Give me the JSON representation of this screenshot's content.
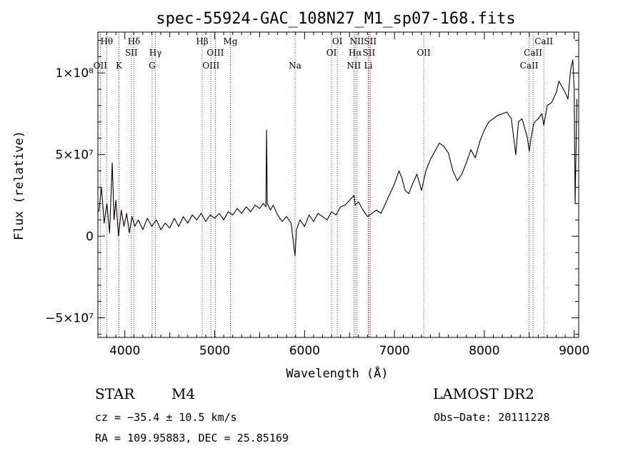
{
  "chart_data": {
    "type": "line",
    "title": "spec-55924-GAC_108N27_M1_sp07-168.fits",
    "xlabel": "Wavelength (Å)",
    "ylabel": "Flux (relative)",
    "xlim": [
      3700,
      9050
    ],
    "ylim": [
      -62000000,
      125000000
    ],
    "x_ticks": [
      4000,
      5000,
      6000,
      7000,
      8000,
      9000
    ],
    "x_tick_labels": [
      "4000",
      "5000",
      "6000",
      "7000",
      "8000",
      "9000"
    ],
    "y_ticks": [
      -50000000,
      0,
      50000000,
      100000000
    ],
    "y_tick_labels": [
      "−5×10⁷",
      "0",
      "5×10⁷",
      "1×10⁸"
    ],
    "grid": false,
    "line_color": "#000000",
    "marker_color": "#b22222",
    "series": [
      {
        "values": [
          [
            3710,
            15000000
          ],
          [
            3740,
            30000000
          ],
          [
            3770,
            8000000
          ],
          [
            3800,
            20000000
          ],
          [
            3830,
            2000000
          ],
          [
            3860,
            45000000
          ],
          [
            3880,
            10000000
          ],
          [
            3900,
            22000000
          ],
          [
            3930,
            0
          ],
          [
            3960,
            16000000
          ],
          [
            3990,
            6000000
          ],
          [
            4020,
            14000000
          ],
          [
            4050,
            2000000
          ],
          [
            4080,
            12000000
          ],
          [
            4110,
            6000000
          ],
          [
            4150,
            10000000
          ],
          [
            4200,
            4000000
          ],
          [
            4250,
            11000000
          ],
          [
            4300,
            6000000
          ],
          [
            4350,
            10000000
          ],
          [
            4400,
            4000000
          ],
          [
            4450,
            8000000
          ],
          [
            4500,
            5000000
          ],
          [
            4550,
            11000000
          ],
          [
            4600,
            6000000
          ],
          [
            4650,
            12000000
          ],
          [
            4700,
            8000000
          ],
          [
            4750,
            13000000
          ],
          [
            4800,
            10000000
          ],
          [
            4850,
            14000000
          ],
          [
            4900,
            9000000
          ],
          [
            4950,
            13000000
          ],
          [
            5000,
            11000000
          ],
          [
            5050,
            14000000
          ],
          [
            5100,
            10000000
          ],
          [
            5150,
            15000000
          ],
          [
            5200,
            13000000
          ],
          [
            5250,
            17000000
          ],
          [
            5300,
            14000000
          ],
          [
            5350,
            18000000
          ],
          [
            5400,
            15000000
          ],
          [
            5450,
            19000000
          ],
          [
            5500,
            17000000
          ],
          [
            5540,
            20000000
          ],
          [
            5570,
            18000000
          ],
          [
            5577,
            65000000
          ],
          [
            5585,
            20000000
          ],
          [
            5620,
            16000000
          ],
          [
            5650,
            19000000
          ],
          [
            5700,
            13000000
          ],
          [
            5750,
            9000000
          ],
          [
            5800,
            12000000
          ],
          [
            5850,
            8000000
          ],
          [
            5893,
            -12000000
          ],
          [
            5910,
            4000000
          ],
          [
            5950,
            10000000
          ],
          [
            6000,
            6000000
          ],
          [
            6050,
            13000000
          ],
          [
            6100,
            9000000
          ],
          [
            6150,
            14000000
          ],
          [
            6200,
            12000000
          ],
          [
            6250,
            10000000
          ],
          [
            6300,
            15000000
          ],
          [
            6350,
            13000000
          ],
          [
            6400,
            18000000
          ],
          [
            6450,
            19000000
          ],
          [
            6500,
            22000000
          ],
          [
            6550,
            25000000
          ],
          [
            6563,
            19000000
          ],
          [
            6600,
            21000000
          ],
          [
            6650,
            16000000
          ],
          [
            6700,
            12000000
          ],
          [
            6750,
            14000000
          ],
          [
            6800,
            16000000
          ],
          [
            6850,
            14000000
          ],
          [
            6900,
            20000000
          ],
          [
            6950,
            26000000
          ],
          [
            7000,
            32000000
          ],
          [
            7050,
            40000000
          ],
          [
            7080,
            36000000
          ],
          [
            7120,
            28000000
          ],
          [
            7160,
            26000000
          ],
          [
            7200,
            32000000
          ],
          [
            7250,
            38000000
          ],
          [
            7300,
            28000000
          ],
          [
            7350,
            40000000
          ],
          [
            7400,
            47000000
          ],
          [
            7450,
            52000000
          ],
          [
            7500,
            57000000
          ],
          [
            7550,
            55000000
          ],
          [
            7600,
            51000000
          ],
          [
            7650,
            40000000
          ],
          [
            7700,
            34000000
          ],
          [
            7750,
            38000000
          ],
          [
            7800,
            45000000
          ],
          [
            7850,
            53000000
          ],
          [
            7900,
            48000000
          ],
          [
            7950,
            58000000
          ],
          [
            8000,
            65000000
          ],
          [
            8050,
            70000000
          ],
          [
            8100,
            72000000
          ],
          [
            8150,
            74000000
          ],
          [
            8200,
            75000000
          ],
          [
            8250,
            76000000
          ],
          [
            8300,
            72000000
          ],
          [
            8350,
            50000000
          ],
          [
            8380,
            70000000
          ],
          [
            8420,
            72000000
          ],
          [
            8450,
            66000000
          ],
          [
            8480,
            60000000
          ],
          [
            8500,
            52000000
          ],
          [
            8520,
            60000000
          ],
          [
            8545,
            68000000
          ],
          [
            8560,
            70000000
          ],
          [
            8600,
            72000000
          ],
          [
            8640,
            75000000
          ],
          [
            8662,
            68000000
          ],
          [
            8700,
            80000000
          ],
          [
            8750,
            82000000
          ],
          [
            8800,
            88000000
          ],
          [
            8830,
            95000000
          ],
          [
            8860,
            92000000
          ],
          [
            8900,
            88000000
          ],
          [
            8930,
            84000000
          ],
          [
            8960,
            102000000
          ],
          [
            8985,
            108000000
          ],
          [
            9000,
            90000000
          ],
          [
            9010,
            20000000
          ],
          [
            9030,
            84000000
          ]
        ]
      }
    ],
    "line_markers": [
      {
        "wavelength": 3727,
        "row": 3,
        "label": "OII"
      },
      {
        "wavelength": 3798,
        "row": 1,
        "label": "Hθ"
      },
      {
        "wavelength": 3934,
        "row": 3,
        "label": "K"
      },
      {
        "wavelength": 4072,
        "row": 2,
        "label": "SII"
      },
      {
        "wavelength": 4102,
        "row": 1,
        "label": "Hδ"
      },
      {
        "wavelength": 4304,
        "row": 3,
        "label": "G"
      },
      {
        "wavelength": 4340,
        "row": 2,
        "label": "Hγ"
      },
      {
        "wavelength": 4861,
        "row": 1,
        "label": "Hβ"
      },
      {
        "wavelength": 4959,
        "row": 3,
        "label": "OIII"
      },
      {
        "wavelength": 5007,
        "row": 2,
        "label": "OIII"
      },
      {
        "wavelength": 5175,
        "row": 1,
        "label": "Mg"
      },
      {
        "wavelength": 5894,
        "row": 3,
        "label": "Na"
      },
      {
        "wavelength": 6300,
        "row": 2,
        "label": "OI"
      },
      {
        "wavelength": 6364,
        "row": 1,
        "label": "OI"
      },
      {
        "wavelength": 6548,
        "row": 3,
        "label": "NII"
      },
      {
        "wavelength": 6563,
        "row": 2,
        "label": "Hα"
      },
      {
        "wavelength": 6583,
        "row": 1,
        "label": "NII"
      },
      {
        "wavelength": 6708,
        "row": 3,
        "label": "Li"
      },
      {
        "wavelength": 6716,
        "row": 2,
        "label": "SII"
      },
      {
        "wavelength": 6731,
        "row": 1,
        "label": "SII"
      },
      {
        "wavelength": 7325,
        "row": 2,
        "label": "OII"
      },
      {
        "wavelength": 8498,
        "row": 3,
        "label": "CaII"
      },
      {
        "wavelength": 8542,
        "row": 2,
        "label": "CaII"
      },
      {
        "wavelength": 8662,
        "row": 1,
        "label": "CaII"
      }
    ]
  },
  "info": {
    "object_class": "STAR",
    "subclass": "M4",
    "survey": "LAMOST DR2",
    "redshift": "cz = −35.4 ± 10.5 km/s",
    "obs_date": "Obs−Date: 20111228",
    "coords": "RA = 109.95883, DEC =  25.85169"
  }
}
